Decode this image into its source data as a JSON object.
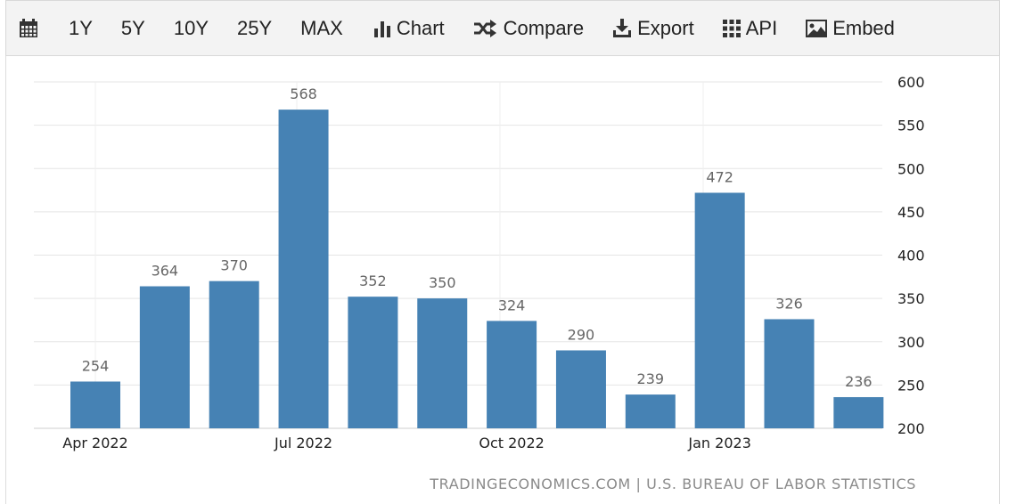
{
  "toolbar": {
    "calendar_icon": "calendar-icon",
    "ranges": [
      "1Y",
      "5Y",
      "10Y",
      "25Y",
      "MAX"
    ],
    "chart_label": "Chart",
    "compare_label": "Compare",
    "export_label": "Export",
    "api_label": "API",
    "embed_label": "Embed"
  },
  "source": "TRADINGECONOMICS.COM | U.S. BUREAU OF LABOR STATISTICS",
  "colors": {
    "bar": "#4682b4",
    "toolbar_bg": "#f3f3f3",
    "grid": "#e5e5e5"
  },
  "chart_data": {
    "type": "bar",
    "categories": [
      "Apr 2022",
      "May 2022",
      "Jun 2022",
      "Jul 2022",
      "Aug 2022",
      "Sep 2022",
      "Oct 2022",
      "Nov 2022",
      "Dec 2022",
      "Jan 2023",
      "Feb 2023",
      "Mar 2023"
    ],
    "values": [
      254,
      364,
      370,
      568,
      352,
      350,
      324,
      290,
      239,
      472,
      326,
      236
    ],
    "x_tick_labels": [
      "Apr 2022",
      "Jul 2022",
      "Oct 2022",
      "Jan 2023"
    ],
    "y_ticks": [
      200,
      250,
      300,
      350,
      400,
      450,
      500,
      550,
      600
    ],
    "ylim": [
      200,
      600
    ],
    "y_axis_side": "right",
    "grid": true,
    "data_labels": true,
    "title": "",
    "xlabel": "",
    "ylabel": ""
  }
}
